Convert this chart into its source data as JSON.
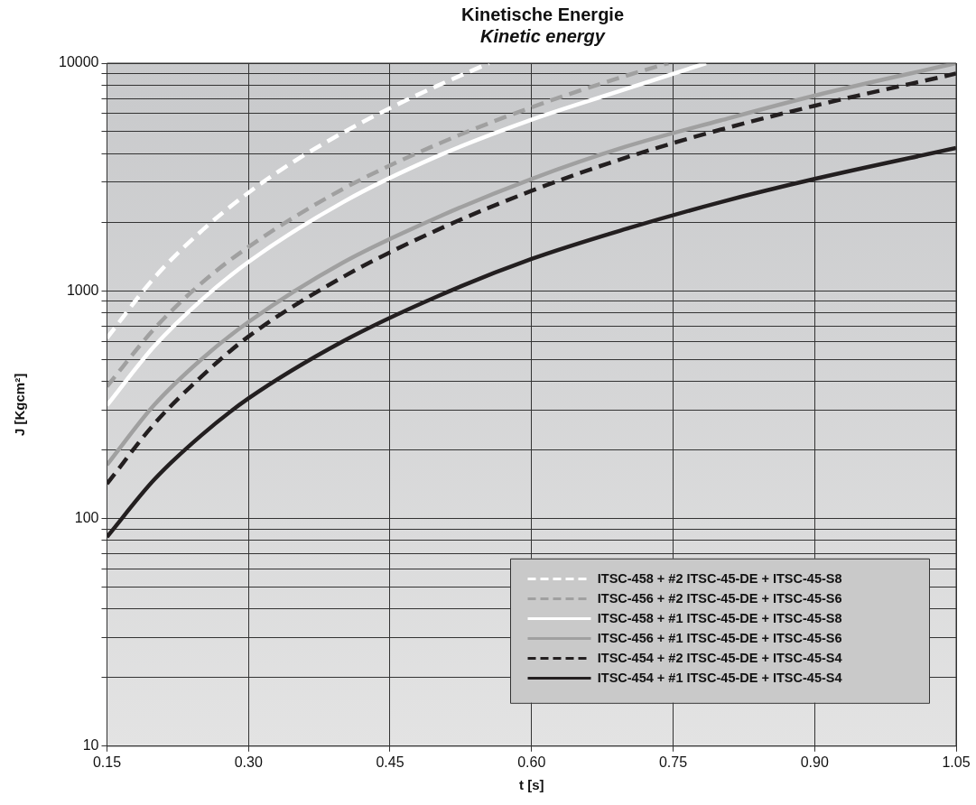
{
  "chart_data": {
    "type": "line",
    "title": "Kinetische Energie",
    "subtitle": "Kinetic energy",
    "xlabel": "t [s]",
    "ylabel": "J [Kgcm²]",
    "log": "y",
    "grid": true,
    "legend": "bottom right",
    "marker": "none",
    "xlim": [
      0.15,
      1.05
    ],
    "xticks": [
      0.15,
      {
        "value": 0.3,
        "label": "0.30"
      },
      0.45,
      {
        "value": 0.6,
        "label": "0.60"
      },
      0.75,
      {
        "value": 0.9,
        "label": "0.90"
      },
      1.05
    ],
    "ylim": [
      10,
      10000
    ],
    "yticks": [
      10,
      {
        "value": 20,
        "label": null
      },
      {
        "value": 30,
        "label": null
      },
      {
        "value": 40,
        "label": null
      },
      {
        "value": 50,
        "label": null
      },
      {
        "value": 60,
        "label": null
      },
      {
        "value": 70,
        "label": null
      },
      {
        "value": 80,
        "label": null
      },
      {
        "value": 90,
        "label": null
      },
      100,
      {
        "value": 200,
        "label": null
      },
      {
        "value": 300,
        "label": null
      },
      {
        "value": 400,
        "label": null
      },
      {
        "value": 500,
        "label": null
      },
      {
        "value": 600,
        "label": null
      },
      {
        "value": 700,
        "label": null
      },
      {
        "value": 800,
        "label": null
      },
      {
        "value": 900,
        "label": null
      },
      1000,
      {
        "value": 2000,
        "label": null
      },
      {
        "value": 3000,
        "label": null
      },
      {
        "value": 4000,
        "label": null
      },
      {
        "value": 5000,
        "label": null
      },
      {
        "value": 6000,
        "label": null
      },
      {
        "value": 7000,
        "label": null
      },
      {
        "value": 8000,
        "label": null
      },
      {
        "value": 9000,
        "label": null
      },
      10000
    ],
    "series": [
      {
        "name": "ITSC-458 + #2 ITSC-45-DE + ITSC-45-S8",
        "color": "#ffffff",
        "line_style": "dashed",
        "x": [
          0.15,
          0.2,
          0.25,
          0.3,
          0.35,
          0.4,
          0.45,
          0.5,
          0.555
        ],
        "values": [
          620,
          1140,
          1830,
          2700,
          3740,
          4950,
          6350,
          7950,
          10000
        ]
      },
      {
        "name": "ITSC-456 + #2 ITSC-45-DE + ITSC-45-S6",
        "color": "#a0a0a0",
        "line_style": "dashed",
        "x": [
          0.15,
          0.2,
          0.25,
          0.3,
          0.4,
          0.5,
          0.6,
          0.7,
          0.745
        ],
        "values": [
          380,
          680,
          1080,
          1560,
          2800,
          4400,
          6400,
          8800,
          10000
        ]
      },
      {
        "name": "ITSC-458 + #1 ITSC-45-DE + ITSC-45-S8",
        "color": "#ffffff",
        "line_style": "solid",
        "x": [
          0.15,
          0.2,
          0.25,
          0.3,
          0.4,
          0.5,
          0.6,
          0.7,
          0.785
        ],
        "values": [
          314,
          570,
          910,
          1340,
          2450,
          3900,
          5650,
          7700,
          10000
        ]
      },
      {
        "name": "ITSC-456 + #1 ITSC-45-DE + ITSC-45-S6",
        "color": "#a0a0a0",
        "line_style": "solid",
        "x": [
          0.15,
          0.2,
          0.25,
          0.3,
          0.4,
          0.5,
          0.6,
          0.7,
          0.8,
          0.9,
          1.05
        ],
        "values": [
          172,
          315,
          500,
          730,
          1330,
          2100,
          3100,
          4300,
          5600,
          7200,
          10000
        ]
      },
      {
        "name": "ITSC-454 + #2 ITSC-45-DE + ITSC-45-S4",
        "color": "#231f20",
        "line_style": "dashed",
        "x": [
          0.15,
          0.2,
          0.25,
          0.3,
          0.4,
          0.5,
          0.6,
          0.7,
          0.8,
          0.9,
          1.05
        ],
        "values": [
          142,
          260,
          420,
          630,
          1150,
          1850,
          2750,
          3850,
          5100,
          6500,
          9000
        ]
      },
      {
        "name": "ITSC-454 + #1 ITSC-45-DE + ITSC-45-S4",
        "color": "#231f20",
        "line_style": "solid",
        "x": [
          0.15,
          0.2,
          0.25,
          0.3,
          0.4,
          0.5,
          0.6,
          0.7,
          0.8,
          0.9,
          1.05
        ],
        "values": [
          83,
          148,
          232,
          337,
          600,
          945,
          1380,
          1870,
          2450,
          3100,
          4240
        ]
      }
    ]
  }
}
